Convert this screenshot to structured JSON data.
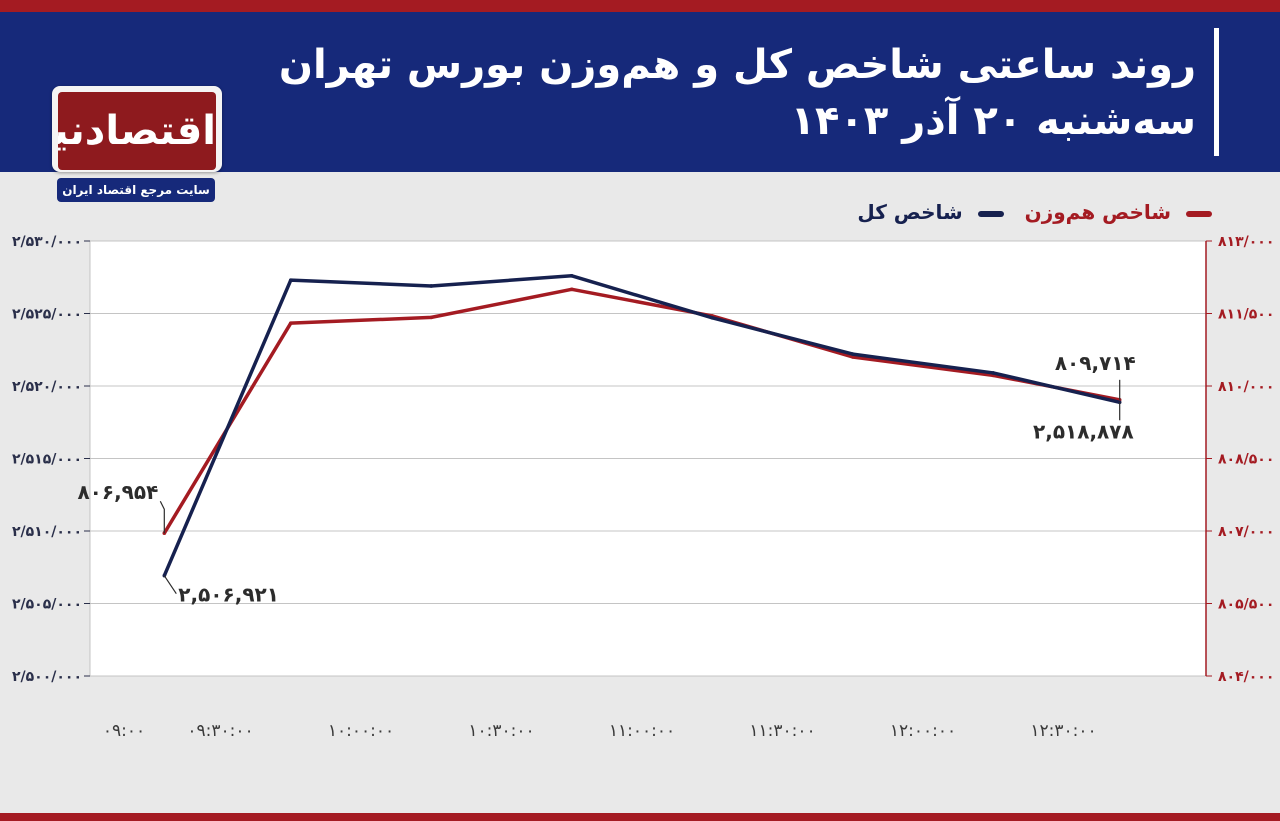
{
  "header": {
    "title": "روند ساعتی شاخص کل و هم‌وزن بورس تهران",
    "subtitle": "سه‌شنبه ۲۰ آذر ۱۴۰۳"
  },
  "brand": {
    "logo_text": "اقتصادنیوز",
    "tagline": "سایت مرجع اقتصاد ایران",
    "primary_color": "#16297a",
    "accent_color": "#a41b22"
  },
  "chart_data": {
    "type": "line",
    "x": [
      "۰۹:۰۰",
      "۰۹:۳۰:۰۰",
      "۱۰:۰۰:۰۰",
      "۱۰:۳۰:۰۰",
      "۱۱:۰۰:۰۰",
      "۱۱:۳۰:۰۰",
      "۱۲:۰۰:۰۰",
      "۱۲:۳۰:۰۰"
    ],
    "grid": true,
    "legend_position": "top-right",
    "y_left": {
      "ticks": [
        "۲/۵۰۰/۰۰۰",
        "۲/۵۰۵/۰۰۰",
        "۲/۵۱۰/۰۰۰",
        "۲/۵۱۵/۰۰۰",
        "۲/۵۲۰/۰۰۰",
        "۲/۵۲۵/۰۰۰",
        "۲/۵۳۰/۰۰۰"
      ],
      "ylim": [
        2500000,
        2530000
      ]
    },
    "y_right": {
      "ticks": [
        "۸۰۴/۰۰۰",
        "۸۰۵/۵۰۰",
        "۸۰۷/۰۰۰",
        "۸۰۸/۵۰۰",
        "۸۱۰/۰۰۰",
        "۸۱۱/۵۰۰",
        "۸۱۳/۰۰۰"
      ],
      "ylim": [
        804000,
        813000
      ]
    },
    "series": [
      {
        "name": "شاخص کل",
        "axis": "left",
        "color": "#16214f",
        "x": [
          0.6,
          1.5,
          2.5,
          3.5,
          4.5,
          5.5,
          6.5,
          7.4
        ],
        "values": [
          2506921,
          2527300,
          2526900,
          2527600,
          2524700,
          2522200,
          2520900,
          2518878
        ],
        "start_label": "۲,۵۰۶,۹۲۱",
        "end_label": "۲,۵۱۸,۸۷۸"
      },
      {
        "name": "شاخص هم‌وزن",
        "axis": "right",
        "color": "#a41b22",
        "x": [
          0.6,
          1.5,
          2.5,
          3.5,
          4.5,
          5.5,
          6.5,
          7.4
        ],
        "values": [
          806954,
          811300,
          811420,
          812000,
          811450,
          810600,
          810220,
          809714
        ],
        "start_label": "۸۰۶,۹۵۴",
        "end_label": "۸۰۹,۷۱۴"
      }
    ]
  }
}
